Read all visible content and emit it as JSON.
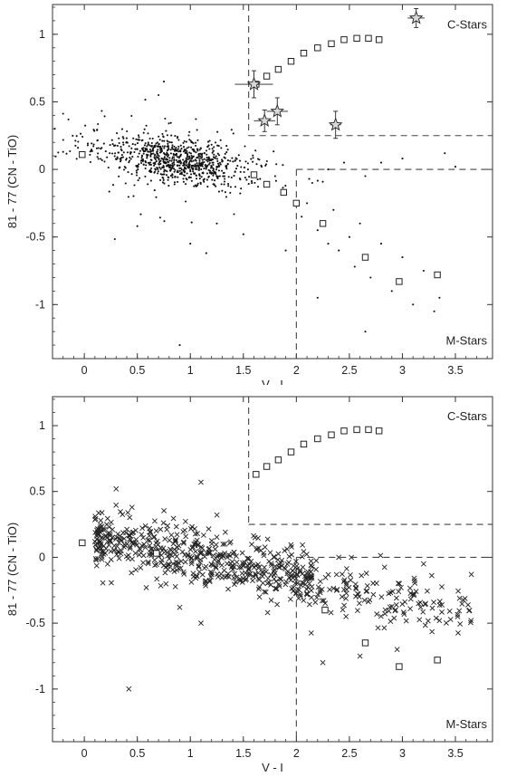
{
  "chart_data": [
    {
      "type": "scatter",
      "xlabel": "V - I",
      "ylabel": "81 - 77  (CN - TiO)",
      "xlim": [
        -0.3,
        3.85
      ],
      "ylim": [
        -1.4,
        1.22
      ],
      "xticks": [
        0,
        0.5,
        1,
        1.5,
        2,
        2.5,
        3,
        3.5
      ],
      "yticks": [
        1,
        0.5,
        0,
        -0.5,
        -1
      ],
      "xtick_labels": [
        "0",
        "0.5",
        "1",
        "1.5",
        "2",
        "2.5",
        "3",
        "3.5"
      ],
      "ytick_labels": [
        "1",
        "0.5",
        "0",
        "-0.5",
        "-1"
      ],
      "annotations": [
        {
          "text": "C-Stars",
          "x": 3.2,
          "y": 1.07
        },
        {
          "text": "M-Stars",
          "x": 3.25,
          "y": -1.27
        }
      ],
      "boundaries": {
        "c_star_left_x": 1.55,
        "c_star_bottom_y": 0.25,
        "m_star_left_x": 2.0,
        "m_star_top_y": 0.0,
        "style": "dashed"
      },
      "series": [
        {
          "marker": "dot",
          "cloud": {
            "count": 900,
            "center_x": 0.85,
            "center_y": 0.07,
            "spread_x": 0.35,
            "spread_y": 0.08,
            "slope": -0.12
          },
          "tail": [
            [
              1.8,
              -0.05
            ],
            [
              1.9,
              -0.18
            ],
            [
              2.05,
              -0.35
            ],
            [
              2.1,
              -0.25
            ],
            [
              2.2,
              -0.45
            ],
            [
              2.3,
              -0.55
            ],
            [
              2.35,
              -0.3
            ],
            [
              2.4,
              -0.6
            ],
            [
              2.5,
              -0.5
            ],
            [
              2.55,
              -0.72
            ],
            [
              2.6,
              -0.4
            ],
            [
              2.7,
              -0.8
            ],
            [
              2.8,
              -0.55
            ],
            [
              2.9,
              -0.9
            ],
            [
              3.0,
              -0.65
            ],
            [
              3.1,
              -1.0
            ],
            [
              3.2,
              -0.75
            ],
            [
              3.35,
              -0.95
            ],
            [
              3.3,
              -1.05
            ],
            [
              2.65,
              -1.2
            ],
            [
              2.2,
              -0.95
            ],
            [
              1.9,
              -0.6
            ],
            [
              2.45,
              0.05
            ],
            [
              2.8,
              0.05
            ],
            [
              3.4,
              0.12
            ],
            [
              3.5,
              0.02
            ],
            [
              3.0,
              0.08
            ],
            [
              2.65,
              -0.05
            ],
            [
              2.3,
              0.0
            ],
            [
              2.15,
              -0.1
            ],
            [
              -0.15,
              0.37
            ],
            [
              -0.2,
              0.13
            ],
            [
              0.5,
              -0.42
            ],
            [
              1.0,
              -0.55
            ],
            [
              0.9,
              -1.3
            ],
            [
              1.25,
              -0.4
            ],
            [
              1.5,
              -0.48
            ],
            [
              1.15,
              -0.62
            ],
            [
              0.75,
              0.65
            ],
            [
              0.7,
              0.55
            ]
          ]
        },
        {
          "marker": "open-square",
          "name": "",
          "points": [
            [
              -0.02,
              0.11
            ],
            [
              1.62,
              0.63
            ],
            [
              1.72,
              0.69
            ],
            [
              1.83,
              0.74
            ],
            [
              1.95,
              0.8
            ],
            [
              2.07,
              0.86
            ],
            [
              2.2,
              0.9
            ],
            [
              2.33,
              0.93
            ],
            [
              2.45,
              0.96
            ],
            [
              2.57,
              0.97
            ],
            [
              2.68,
              0.97
            ],
            [
              2.78,
              0.96
            ],
            [
              1.6,
              -0.04
            ],
            [
              1.72,
              -0.11
            ],
            [
              1.88,
              -0.17
            ],
            [
              2.0,
              -0.25
            ],
            [
              2.25,
              -0.4
            ],
            [
              2.65,
              -0.65
            ],
            [
              2.97,
              -0.83
            ],
            [
              3.33,
              -0.78
            ]
          ]
        },
        {
          "marker": "star-with-error-bars",
          "points": [
            {
              "x": 1.6,
              "y": 0.63,
              "xerr": 0.18,
              "yerr": 0.1
            },
            {
              "x": 1.7,
              "y": 0.36,
              "xerr": 0.1,
              "yerr": 0.08
            },
            {
              "x": 1.82,
              "y": 0.43,
              "xerr": 0.1,
              "yerr": 0.1
            },
            {
              "x": 2.37,
              "y": 0.33,
              "xerr": 0.05,
              "yerr": 0.1
            },
            {
              "x": 3.13,
              "y": 1.12,
              "xerr": 0.08,
              "yerr": 0.07
            }
          ]
        }
      ]
    },
    {
      "type": "scatter",
      "xlabel": "V - I",
      "ylabel": "81 - 77  (CN - TiO)",
      "xlim": [
        -0.3,
        3.85
      ],
      "ylim": [
        -1.4,
        1.22
      ],
      "xticks": [
        0,
        0.5,
        1,
        1.5,
        2,
        2.5,
        3,
        3.5
      ],
      "yticks": [
        1,
        0.5,
        0,
        -0.5,
        -1
      ],
      "xtick_labels": [
        "0",
        "0.5",
        "1",
        "1.5",
        "2",
        "2.5",
        "3",
        "3.5"
      ],
      "ytick_labels": [
        "1",
        "0.5",
        "0",
        "-0.5",
        "-1"
      ],
      "annotations": [
        {
          "text": "C-Stars",
          "x": 3.2,
          "y": 1.07
        },
        {
          "text": "M-Stars",
          "x": 3.25,
          "y": -1.27
        }
      ],
      "boundaries": {
        "c_star_left_x": 1.55,
        "c_star_bottom_y": 0.25,
        "m_star_left_x": 2.0,
        "m_star_top_y": 0.0,
        "style": "dashed"
      },
      "series": [
        {
          "marker": "cross",
          "cloud": {
            "count": 700,
            "x_min": 0.1,
            "x_max": 3.65,
            "intercept": 0.18,
            "slope": -0.17,
            "spread_y": 0.1
          },
          "extra": [
            [
              0.3,
              0.52
            ],
            [
              0.45,
              0.38
            ],
            [
              1.1,
              0.57
            ],
            [
              0.42,
              -1.0
            ],
            [
              1.1,
              -0.5
            ],
            [
              0.9,
              -0.38
            ],
            [
              3.65,
              -0.13
            ],
            [
              3.2,
              -0.05
            ],
            [
              2.4,
              0.0
            ],
            [
              2.25,
              -0.8
            ],
            [
              2.6,
              -0.75
            ],
            [
              2.95,
              -0.7
            ]
          ]
        },
        {
          "marker": "open-square",
          "name": "",
          "points": [
            [
              -0.02,
              0.11
            ],
            [
              1.62,
              0.63
            ],
            [
              1.72,
              0.69
            ],
            [
              1.83,
              0.74
            ],
            [
              1.95,
              0.8
            ],
            [
              2.07,
              0.86
            ],
            [
              2.2,
              0.9
            ],
            [
              2.33,
              0.93
            ],
            [
              2.45,
              0.96
            ],
            [
              2.57,
              0.97
            ],
            [
              2.68,
              0.97
            ],
            [
              2.78,
              0.96
            ],
            [
              0.68,
              0.03
            ],
            [
              2.27,
              -0.4
            ],
            [
              2.65,
              -0.65
            ],
            [
              2.97,
              -0.83
            ],
            [
              3.33,
              -0.78
            ]
          ]
        }
      ]
    }
  ]
}
